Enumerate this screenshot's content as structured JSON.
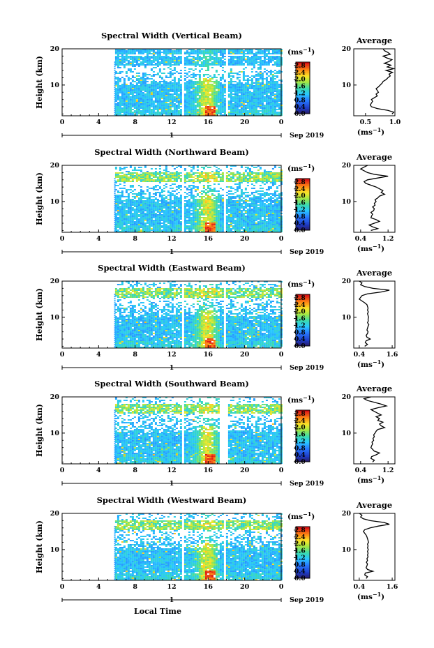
{
  "figure": {
    "xlabel": "Local Time",
    "date_label": "Sep 2019",
    "day_label": "1",
    "colorbar_unit": "(ms",
    "colorbar_unit_exp": "−1"
  },
  "chart_data": [
    {
      "type": "heatmap",
      "title": "Spectral Width (Vertical Beam)",
      "ylabel": "Height (km)",
      "x_ticks": [
        "0",
        "4",
        "8",
        "12",
        "16",
        "20",
        "0"
      ],
      "y_ticks": [
        "20",
        "10"
      ],
      "xlim": [
        0,
        24
      ],
      "ylim": [
        1.5,
        20
      ],
      "colorbar": {
        "ticks": [
          "2.8",
          "2.4",
          "2.0",
          "1.6",
          "1.2",
          "0.8",
          "0.4",
          "0.0"
        ],
        "range": [
          0,
          3.0
        ]
      },
      "data_gaps_hours": [
        [
          13.0,
          13.3
        ],
        [
          17.8,
          18.1
        ]
      ],
      "avg_profile": {
        "title": "Average",
        "xlabel": "(ms",
        "xlabel_exp": "−1",
        "x_ticks": [
          "0.5",
          "1.0"
        ],
        "y_ticks": [
          "20",
          "10"
        ],
        "xlim": [
          0.3,
          1.0
        ],
        "ylim": [
          1.5,
          20
        ],
        "heights_km": [
          2,
          2.5,
          3,
          3.5,
          4,
          4.5,
          5,
          5.5,
          6,
          6.5,
          7,
          7.5,
          8,
          8.5,
          9,
          9.5,
          10,
          10.5,
          11,
          11.5,
          12,
          12.5,
          13,
          13.5,
          14,
          14.5,
          15,
          15.5,
          16,
          16.5,
          17,
          17.5,
          18,
          18.5,
          19,
          19.5,
          20
        ],
        "values": [
          0.95,
          0.98,
          0.88,
          0.7,
          0.6,
          0.58,
          0.6,
          0.62,
          0.6,
          0.65,
          0.7,
          0.68,
          0.72,
          0.7,
          0.68,
          0.72,
          0.75,
          0.78,
          0.8,
          0.85,
          0.88,
          0.92,
          0.9,
          0.96,
          0.85,
          0.98,
          0.87,
          0.93,
          0.82,
          0.9,
          0.95,
          0.86,
          0.8,
          0.92,
          0.88,
          0.82,
          0.8
        ]
      }
    },
    {
      "type": "heatmap",
      "title": "Spectral Width (Northward Beam)",
      "ylabel": "Height (km)",
      "x_ticks": [
        "0",
        "4",
        "8",
        "12",
        "16",
        "20",
        "0"
      ],
      "y_ticks": [
        "20",
        "10"
      ],
      "xlim": [
        0,
        24
      ],
      "ylim": [
        1.5,
        20
      ],
      "colorbar": {
        "ticks": [
          "2.8",
          "2.4",
          "2.0",
          "1.6",
          "1.2",
          "0.8",
          "0.4",
          "0.0"
        ],
        "range": [
          0,
          3.0
        ]
      },
      "data_gaps_hours": [
        [
          13.0,
          13.3
        ],
        [
          17.6,
          17.9
        ]
      ],
      "avg_profile": {
        "title": "Average",
        "xlabel": "(ms",
        "xlabel_exp": "−1",
        "x_ticks": [
          "0.4",
          "1.2"
        ],
        "y_ticks": [
          "20",
          "10"
        ],
        "xlim": [
          0.2,
          1.4
        ],
        "ylim": [
          1.5,
          20
        ],
        "heights_km": [
          2,
          2.5,
          3,
          3.5,
          4,
          4.5,
          5,
          5.5,
          6,
          6.5,
          7,
          7.5,
          8,
          8.5,
          9,
          9.5,
          10,
          10.5,
          11,
          11.5,
          12,
          12.5,
          13,
          13.5,
          14,
          14.5,
          15,
          15.5,
          16,
          16.5,
          17,
          17.5,
          18,
          18.5,
          19,
          19.5,
          20
        ],
        "values": [
          0.7,
          0.9,
          0.75,
          0.65,
          0.8,
          0.95,
          0.85,
          0.7,
          0.72,
          0.75,
          0.7,
          0.78,
          0.8,
          0.75,
          0.82,
          0.8,
          0.85,
          0.82,
          0.9,
          0.95,
          1.1,
          1.0,
          1.05,
          0.95,
          0.85,
          0.7,
          0.55,
          0.5,
          0.6,
          0.9,
          1.2,
          0.8,
          0.6,
          0.5,
          0.4,
          0.5,
          0.6
        ]
      }
    },
    {
      "type": "heatmap",
      "title": "Spectral Width (Eastward Beam)",
      "ylabel": "Height (km)",
      "x_ticks": [
        "0",
        "4",
        "8",
        "12",
        "16",
        "20",
        "0"
      ],
      "y_ticks": [
        "20",
        "10"
      ],
      "xlim": [
        0,
        24
      ],
      "ylim": [
        1.5,
        20
      ],
      "colorbar": {
        "ticks": [
          "2.8",
          "2.4",
          "2.0",
          "1.6",
          "1.2",
          "0.8",
          "0.4",
          "0.0"
        ],
        "range": [
          0,
          3.0
        ]
      },
      "data_gaps_hours": [
        [
          13.0,
          13.3
        ],
        [
          17.6,
          17.9
        ]
      ],
      "avg_profile": {
        "title": "Average",
        "xlabel": "(ms",
        "xlabel_exp": "−1",
        "x_ticks": [
          "0.4",
          "1.6"
        ],
        "y_ticks": [
          "20",
          "10"
        ],
        "xlim": [
          0.2,
          1.7
        ],
        "ylim": [
          1.5,
          20
        ],
        "heights_km": [
          2,
          2.5,
          3,
          3.5,
          4,
          4.5,
          5,
          5.5,
          6,
          6.5,
          7,
          7.5,
          8,
          8.5,
          9,
          9.5,
          10,
          10.5,
          11,
          11.5,
          12,
          12.5,
          13,
          13.5,
          14,
          14.5,
          15,
          15.5,
          16,
          16.5,
          17,
          17.5,
          18,
          18.5,
          19,
          19.5,
          20
        ],
        "values": [
          0.6,
          0.7,
          0.62,
          0.65,
          0.8,
          0.68,
          0.65,
          0.7,
          0.72,
          0.68,
          0.7,
          0.72,
          0.75,
          0.7,
          0.73,
          0.72,
          0.74,
          0.72,
          0.7,
          0.73,
          0.7,
          0.72,
          0.7,
          0.68,
          0.6,
          0.5,
          0.4,
          0.45,
          0.5,
          0.7,
          1.2,
          1.5,
          0.9,
          0.6,
          0.45,
          0.5,
          0.4
        ]
      }
    },
    {
      "type": "heatmap",
      "title": "Spectral Width (Southward Beam)",
      "ylabel": "Height (km)",
      "x_ticks": [
        "0",
        "4",
        "8",
        "12",
        "16",
        "20",
        "0"
      ],
      "y_ticks": [
        "20",
        "10"
      ],
      "xlim": [
        0,
        24
      ],
      "ylim": [
        1.5,
        20
      ],
      "colorbar": {
        "ticks": [
          "2.8",
          "2.4",
          "2.0",
          "1.6",
          "1.2",
          "0.8",
          "0.4",
          "0.0"
        ],
        "range": [
          0,
          3.0
        ]
      },
      "data_gaps_hours": [
        [
          13.0,
          13.3
        ],
        [
          17.2,
          18.0
        ]
      ],
      "avg_profile": {
        "title": "Average",
        "xlabel": "(ms",
        "xlabel_exp": "−1",
        "x_ticks": [
          "0.4",
          "1.2"
        ],
        "y_ticks": [
          "20",
          "10"
        ],
        "xlim": [
          0.2,
          1.4
        ],
        "ylim": [
          1.5,
          20
        ],
        "heights_km": [
          2,
          2.5,
          3,
          3.5,
          4,
          4.5,
          5,
          5.5,
          6,
          6.5,
          7,
          7.5,
          8,
          8.5,
          9,
          9.5,
          10,
          10.5,
          11,
          11.5,
          12,
          12.5,
          13,
          13.5,
          14,
          14.5,
          15,
          15.5,
          16,
          16.5,
          17,
          17.5,
          18,
          18.5,
          19,
          19.5,
          20
        ],
        "values": [
          0.75,
          0.8,
          0.7,
          0.72,
          0.85,
          0.95,
          0.8,
          0.75,
          0.7,
          0.72,
          0.75,
          0.73,
          0.78,
          0.76,
          0.8,
          0.78,
          0.82,
          0.85,
          0.9,
          1.1,
          1.0,
          0.95,
          1.05,
          0.9,
          0.95,
          0.85,
          1.0,
          0.9,
          0.8,
          0.7,
          0.9,
          1.15,
          1.0,
          0.8,
          0.6,
          0.5,
          0.7
        ]
      }
    },
    {
      "type": "heatmap",
      "title": "Spectral Width (Westward Beam)",
      "ylabel": "Height (km)",
      "x_ticks": [
        "0",
        "4",
        "8",
        "12",
        "16",
        "20",
        "0"
      ],
      "y_ticks": [
        "20",
        "10"
      ],
      "xlim": [
        0,
        24
      ],
      "ylim": [
        1.5,
        20
      ],
      "colorbar": {
        "ticks": [
          "2.8",
          "2.4",
          "2.0",
          "1.6",
          "1.2",
          "0.8",
          "0.4",
          "0.0"
        ],
        "range": [
          0,
          3.0
        ]
      },
      "data_gaps_hours": [
        [
          13.0,
          13.3
        ],
        [
          17.6,
          17.9
        ]
      ],
      "avg_profile": {
        "title": "Average",
        "xlabel": "(ms",
        "xlabel_exp": "−1",
        "x_ticks": [
          "0.4",
          "1.6"
        ],
        "y_ticks": [
          "20",
          "10"
        ],
        "xlim": [
          0.2,
          1.7
        ],
        "ylim": [
          1.5,
          20
        ],
        "heights_km": [
          2,
          2.5,
          3,
          3.5,
          4,
          4.5,
          5,
          5.5,
          6,
          6.5,
          7,
          7.5,
          8,
          8.5,
          9,
          9.5,
          10,
          10.5,
          11,
          11.5,
          12,
          12.5,
          13,
          13.5,
          14,
          14.5,
          15,
          15.5,
          16,
          16.5,
          17,
          17.5,
          18,
          18.5,
          19,
          19.5,
          20
        ],
        "values": [
          0.65,
          0.7,
          0.6,
          0.62,
          0.9,
          0.7,
          0.65,
          0.68,
          0.7,
          0.66,
          0.7,
          0.68,
          0.72,
          0.7,
          0.72,
          0.7,
          0.73,
          0.7,
          0.72,
          0.7,
          0.74,
          0.72,
          0.7,
          0.68,
          0.65,
          0.6,
          0.55,
          0.6,
          0.8,
          1.1,
          1.5,
          1.3,
          0.8,
          0.55,
          0.45,
          0.5,
          0.4
        ]
      }
    }
  ]
}
